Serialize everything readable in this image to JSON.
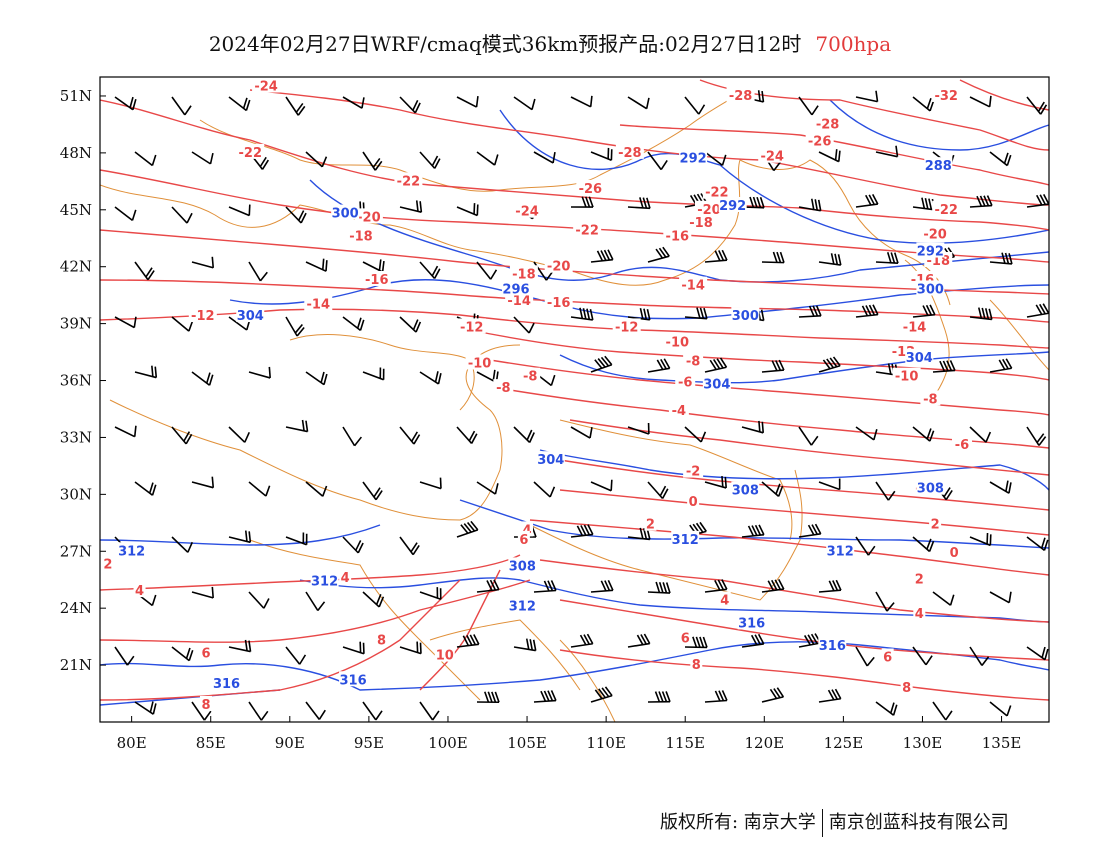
{
  "title": {
    "main": "2024年02月27日WRF/cmaq模式36km预报产品:02月27日12时",
    "level": "700hpa"
  },
  "axes": {
    "lat_labels": [
      "51N",
      "48N",
      "45N",
      "42N",
      "39N",
      "36N",
      "33N",
      "30N",
      "27N",
      "24N",
      "21N"
    ],
    "lon_labels": [
      "80E",
      "85E",
      "90E",
      "95E",
      "100E",
      "105E",
      "110E",
      "115E",
      "120E",
      "125E",
      "130E",
      "135E"
    ],
    "lon_range": [
      78,
      138
    ],
    "lat_range": [
      18,
      52
    ]
  },
  "colors": {
    "temperature": "#e84848",
    "geopotential": "#2a4fe0",
    "border": "#e0903a",
    "barb": "#000000",
    "level": "#e23b3b"
  },
  "temperature_labels": [
    {
      "text": "-24",
      "lon": 88.5,
      "lat": 51.5
    },
    {
      "text": "-28",
      "lon": 118.5,
      "lat": 51.0
    },
    {
      "text": "-32",
      "lon": 131.5,
      "lat": 51.0
    },
    {
      "text": "-28",
      "lon": 124.0,
      "lat": 49.5
    },
    {
      "text": "-26",
      "lon": 123.5,
      "lat": 48.6
    },
    {
      "text": "-28",
      "lon": 111.5,
      "lat": 48.0
    },
    {
      "text": "-22",
      "lon": 87.5,
      "lat": 48.0
    },
    {
      "text": "-24",
      "lon": 120.5,
      "lat": 47.8
    },
    {
      "text": "-22",
      "lon": 97.5,
      "lat": 46.5
    },
    {
      "text": "-26",
      "lon": 109.0,
      "lat": 46.1
    },
    {
      "text": "-22",
      "lon": 117.0,
      "lat": 45.9
    },
    {
      "text": "-20",
      "lon": 95.0,
      "lat": 44.6
    },
    {
      "text": "-24",
      "lon": 105.0,
      "lat": 44.9
    },
    {
      "text": "-20",
      "lon": 116.5,
      "lat": 45.0
    },
    {
      "text": "-18",
      "lon": 116.0,
      "lat": 44.3
    },
    {
      "text": "-22",
      "lon": 131.5,
      "lat": 45.0
    },
    {
      "text": "-18",
      "lon": 94.5,
      "lat": 43.6
    },
    {
      "text": "-22",
      "lon": 108.8,
      "lat": 43.9
    },
    {
      "text": "-16",
      "lon": 114.5,
      "lat": 43.6
    },
    {
      "text": "-20",
      "lon": 130.8,
      "lat": 43.7
    },
    {
      "text": "-18",
      "lon": 131.0,
      "lat": 42.3
    },
    {
      "text": "-20",
      "lon": 107.0,
      "lat": 42.0
    },
    {
      "text": "-18",
      "lon": 104.8,
      "lat": 41.6
    },
    {
      "text": "-16",
      "lon": 95.5,
      "lat": 41.3
    },
    {
      "text": "-16",
      "lon": 130.0,
      "lat": 41.3
    },
    {
      "text": "-14",
      "lon": 115.5,
      "lat": 41.0
    },
    {
      "text": "-14",
      "lon": 104.5,
      "lat": 40.2
    },
    {
      "text": "-16",
      "lon": 107.0,
      "lat": 40.1
    },
    {
      "text": "-14",
      "lon": 91.8,
      "lat": 40.0
    },
    {
      "text": "-12",
      "lon": 84.5,
      "lat": 39.4
    },
    {
      "text": "-12",
      "lon": 101.5,
      "lat": 38.8
    },
    {
      "text": "-12",
      "lon": 111.3,
      "lat": 38.8
    },
    {
      "text": "-14",
      "lon": 129.5,
      "lat": 38.8
    },
    {
      "text": "-10",
      "lon": 114.5,
      "lat": 38.0
    },
    {
      "text": "-12",
      "lon": 128.8,
      "lat": 37.5
    },
    {
      "text": "-10",
      "lon": 102.0,
      "lat": 36.9
    },
    {
      "text": "-8",
      "lon": 105.2,
      "lat": 36.2
    },
    {
      "text": "-8",
      "lon": 115.5,
      "lat": 37.0
    },
    {
      "text": "-10",
      "lon": 129.0,
      "lat": 36.2
    },
    {
      "text": "-8",
      "lon": 103.5,
      "lat": 35.6
    },
    {
      "text": "-6",
      "lon": 115.0,
      "lat": 35.9
    },
    {
      "text": "-8",
      "lon": 130.5,
      "lat": 35.0
    },
    {
      "text": "-4",
      "lon": 114.6,
      "lat": 34.4
    },
    {
      "text": "-6",
      "lon": 132.5,
      "lat": 32.6
    },
    {
      "text": "-2",
      "lon": 115.5,
      "lat": 31.2
    },
    {
      "text": "0",
      "lon": 115.5,
      "lat": 29.6
    },
    {
      "text": "-2",
      "lon": 130.0,
      "lat": 30.3
    },
    {
      "text": "2",
      "lon": 112.8,
      "lat": 28.4
    },
    {
      "text": "2",
      "lon": 130.8,
      "lat": 28.4
    },
    {
      "text": "4",
      "lon": 105.0,
      "lat": 28.1
    },
    {
      "text": "6",
      "lon": 104.8,
      "lat": 27.6
    },
    {
      "text": "0",
      "lon": 132.0,
      "lat": 26.9
    },
    {
      "text": "2",
      "lon": 78.5,
      "lat": 26.3
    },
    {
      "text": "4",
      "lon": 80.5,
      "lat": 24.9
    },
    {
      "text": "4",
      "lon": 93.5,
      "lat": 25.6
    },
    {
      "text": "2",
      "lon": 129.8,
      "lat": 25.5
    },
    {
      "text": "4",
      "lon": 117.5,
      "lat": 24.4
    },
    {
      "text": "4",
      "lon": 129.8,
      "lat": 23.7
    },
    {
      "text": "6",
      "lon": 115.0,
      "lat": 22.4
    },
    {
      "text": "6",
      "lon": 84.7,
      "lat": 21.6
    },
    {
      "text": "6",
      "lon": 127.8,
      "lat": 21.4
    },
    {
      "text": "8",
      "lon": 95.8,
      "lat": 22.3
    },
    {
      "text": "10",
      "lon": 99.8,
      "lat": 21.5
    },
    {
      "text": "8",
      "lon": 115.7,
      "lat": 21.0
    },
    {
      "text": "8",
      "lon": 84.7,
      "lat": 18.9
    },
    {
      "text": "8",
      "lon": 129.0,
      "lat": 19.8
    }
  ],
  "height_labels": [
    {
      "text": "292",
      "lon": 115.5,
      "lat": 47.7
    },
    {
      "text": "288",
      "lon": 131.0,
      "lat": 47.3
    },
    {
      "text": "300",
      "lon": 93.5,
      "lat": 44.8
    },
    {
      "text": "292",
      "lon": 118.0,
      "lat": 45.2
    },
    {
      "text": "292",
      "lon": 130.5,
      "lat": 42.8
    },
    {
      "text": "296",
      "lon": 104.3,
      "lat": 40.8
    },
    {
      "text": "300",
      "lon": 130.5,
      "lat": 40.8
    },
    {
      "text": "304",
      "lon": 87.5,
      "lat": 39.4
    },
    {
      "text": "300",
      "lon": 118.8,
      "lat": 39.4
    },
    {
      "text": "304",
      "lon": 129.8,
      "lat": 37.2
    },
    {
      "text": "304",
      "lon": 117.0,
      "lat": 35.8
    },
    {
      "text": "304",
      "lon": 106.5,
      "lat": 31.8
    },
    {
      "text": "308",
      "lon": 118.8,
      "lat": 30.2
    },
    {
      "text": "308",
      "lon": 130.5,
      "lat": 30.3
    },
    {
      "text": "312",
      "lon": 80.0,
      "lat": 27.0
    },
    {
      "text": "312",
      "lon": 115.0,
      "lat": 27.6
    },
    {
      "text": "312",
      "lon": 124.8,
      "lat": 27.0
    },
    {
      "text": "312",
      "lon": 92.2,
      "lat": 25.4
    },
    {
      "text": "308",
      "lon": 104.7,
      "lat": 26.2
    },
    {
      "text": "312",
      "lon": 104.7,
      "lat": 24.1
    },
    {
      "text": "316",
      "lon": 119.2,
      "lat": 23.2
    },
    {
      "text": "316",
      "lon": 124.3,
      "lat": 22.0
    },
    {
      "text": "316",
      "lon": 86.0,
      "lat": 20.0
    },
    {
      "text": "316",
      "lon": 94.0,
      "lat": 20.2
    }
  ],
  "footer": {
    "left": "版权所有: 南京大学",
    "right": "南京创蓝科技有限公司"
  }
}
